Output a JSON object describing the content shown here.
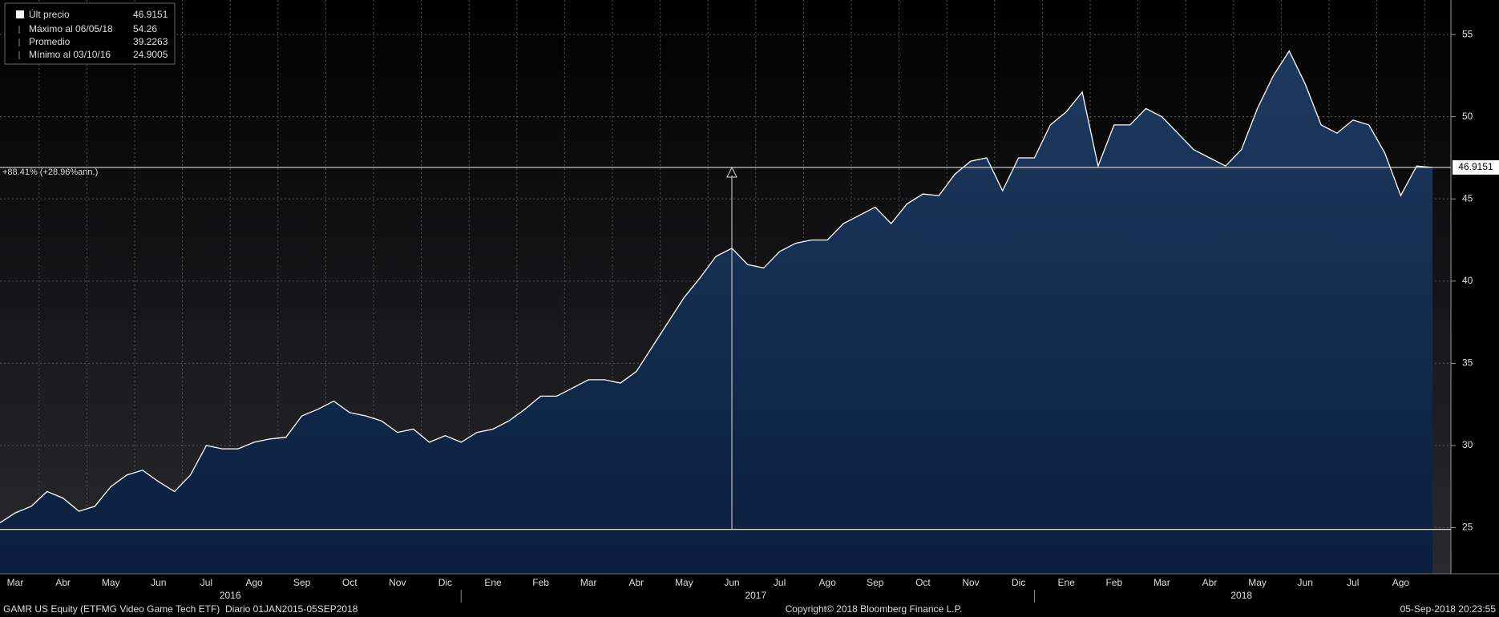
{
  "chart_data": {
    "type": "area",
    "categories": [
      null,
      "Mar",
      null,
      null,
      "Abr",
      null,
      null,
      "May",
      null,
      null,
      "Jun",
      null,
      null,
      "Jul",
      null,
      null,
      "Ago",
      null,
      null,
      "Sep",
      null,
      null,
      "Oct",
      null,
      null,
      "Nov",
      null,
      null,
      "Dic",
      null,
      null,
      "Ene",
      null,
      null,
      "Feb",
      null,
      null,
      "Mar",
      null,
      null,
      "Abr",
      null,
      null,
      "May",
      null,
      null,
      "Jun",
      null,
      null,
      "Jul",
      null,
      null,
      "Ago",
      null,
      null,
      "Sep",
      null,
      null,
      "Oct",
      null,
      null,
      "Nov",
      null,
      null,
      "Dic",
      null,
      null,
      "Ene",
      null,
      null,
      "Feb",
      null,
      null,
      "Mar",
      null,
      null,
      "Abr",
      null,
      null,
      "May",
      null,
      null,
      "Jun",
      null,
      null,
      "Jul",
      null,
      null,
      "Ago",
      null,
      null
    ],
    "years": [
      "2016",
      "2017",
      "2018"
    ],
    "series": [
      {
        "name": "Últ precio",
        "color": "#ffffff",
        "values": [
          25.3,
          25.9,
          26.3,
          27.2,
          26.8,
          26.0,
          26.3,
          27.5,
          28.2,
          28.5,
          27.8,
          27.2,
          28.2,
          30.0,
          29.8,
          29.8,
          30.2,
          30.4,
          30.5,
          31.8,
          32.2,
          32.7,
          32.0,
          31.8,
          31.5,
          30.8,
          31.0,
          30.2,
          30.6,
          30.2,
          30.8,
          31.0,
          31.5,
          32.2,
          33.0,
          33.0,
          33.5,
          34.0,
          34.0,
          33.8,
          34.5,
          36.0,
          37.5,
          39.0,
          40.2,
          41.5,
          42.0,
          41.0,
          40.8,
          41.8,
          42.3,
          42.5,
          42.5,
          43.5,
          44.0,
          44.5,
          43.5,
          44.7,
          45.3,
          45.2,
          46.5,
          47.3,
          47.5,
          45.5,
          47.5,
          47.5,
          49.5,
          50.3,
          51.5,
          47.0,
          49.5,
          49.5,
          50.5,
          50.0,
          49.0,
          48.0,
          47.5,
          47.0,
          48.0,
          50.5,
          52.5,
          54.0,
          52.0,
          49.5,
          49.0,
          49.8,
          49.5,
          47.8,
          45.2,
          47.0,
          46.9151
        ]
      }
    ],
    "stats": [
      {
        "label": "Máximo al 06/05/18",
        "value": 54.26
      },
      {
        "label": "Promedio",
        "value": 39.2263
      },
      {
        "label": "Mínimo al 03/10/16",
        "value": 24.9005
      }
    ],
    "annotation": "+88.41% (+28.96%ann.)",
    "ylim": [
      22.2,
      57.1
    ],
    "yticks": [
      25,
      30,
      35,
      40,
      45,
      50,
      55
    ],
    "grid": true,
    "legend": "top-left",
    "footer": {
      "left": "GAMR US Equity (ETFMG Video Game Tech ETF)  Diario 01JAN2015-05SEP2018",
      "center": "Copyright© 2018 Bloomberg Finance L.P.",
      "right": "05-Sep-2018 20:23:55"
    }
  }
}
